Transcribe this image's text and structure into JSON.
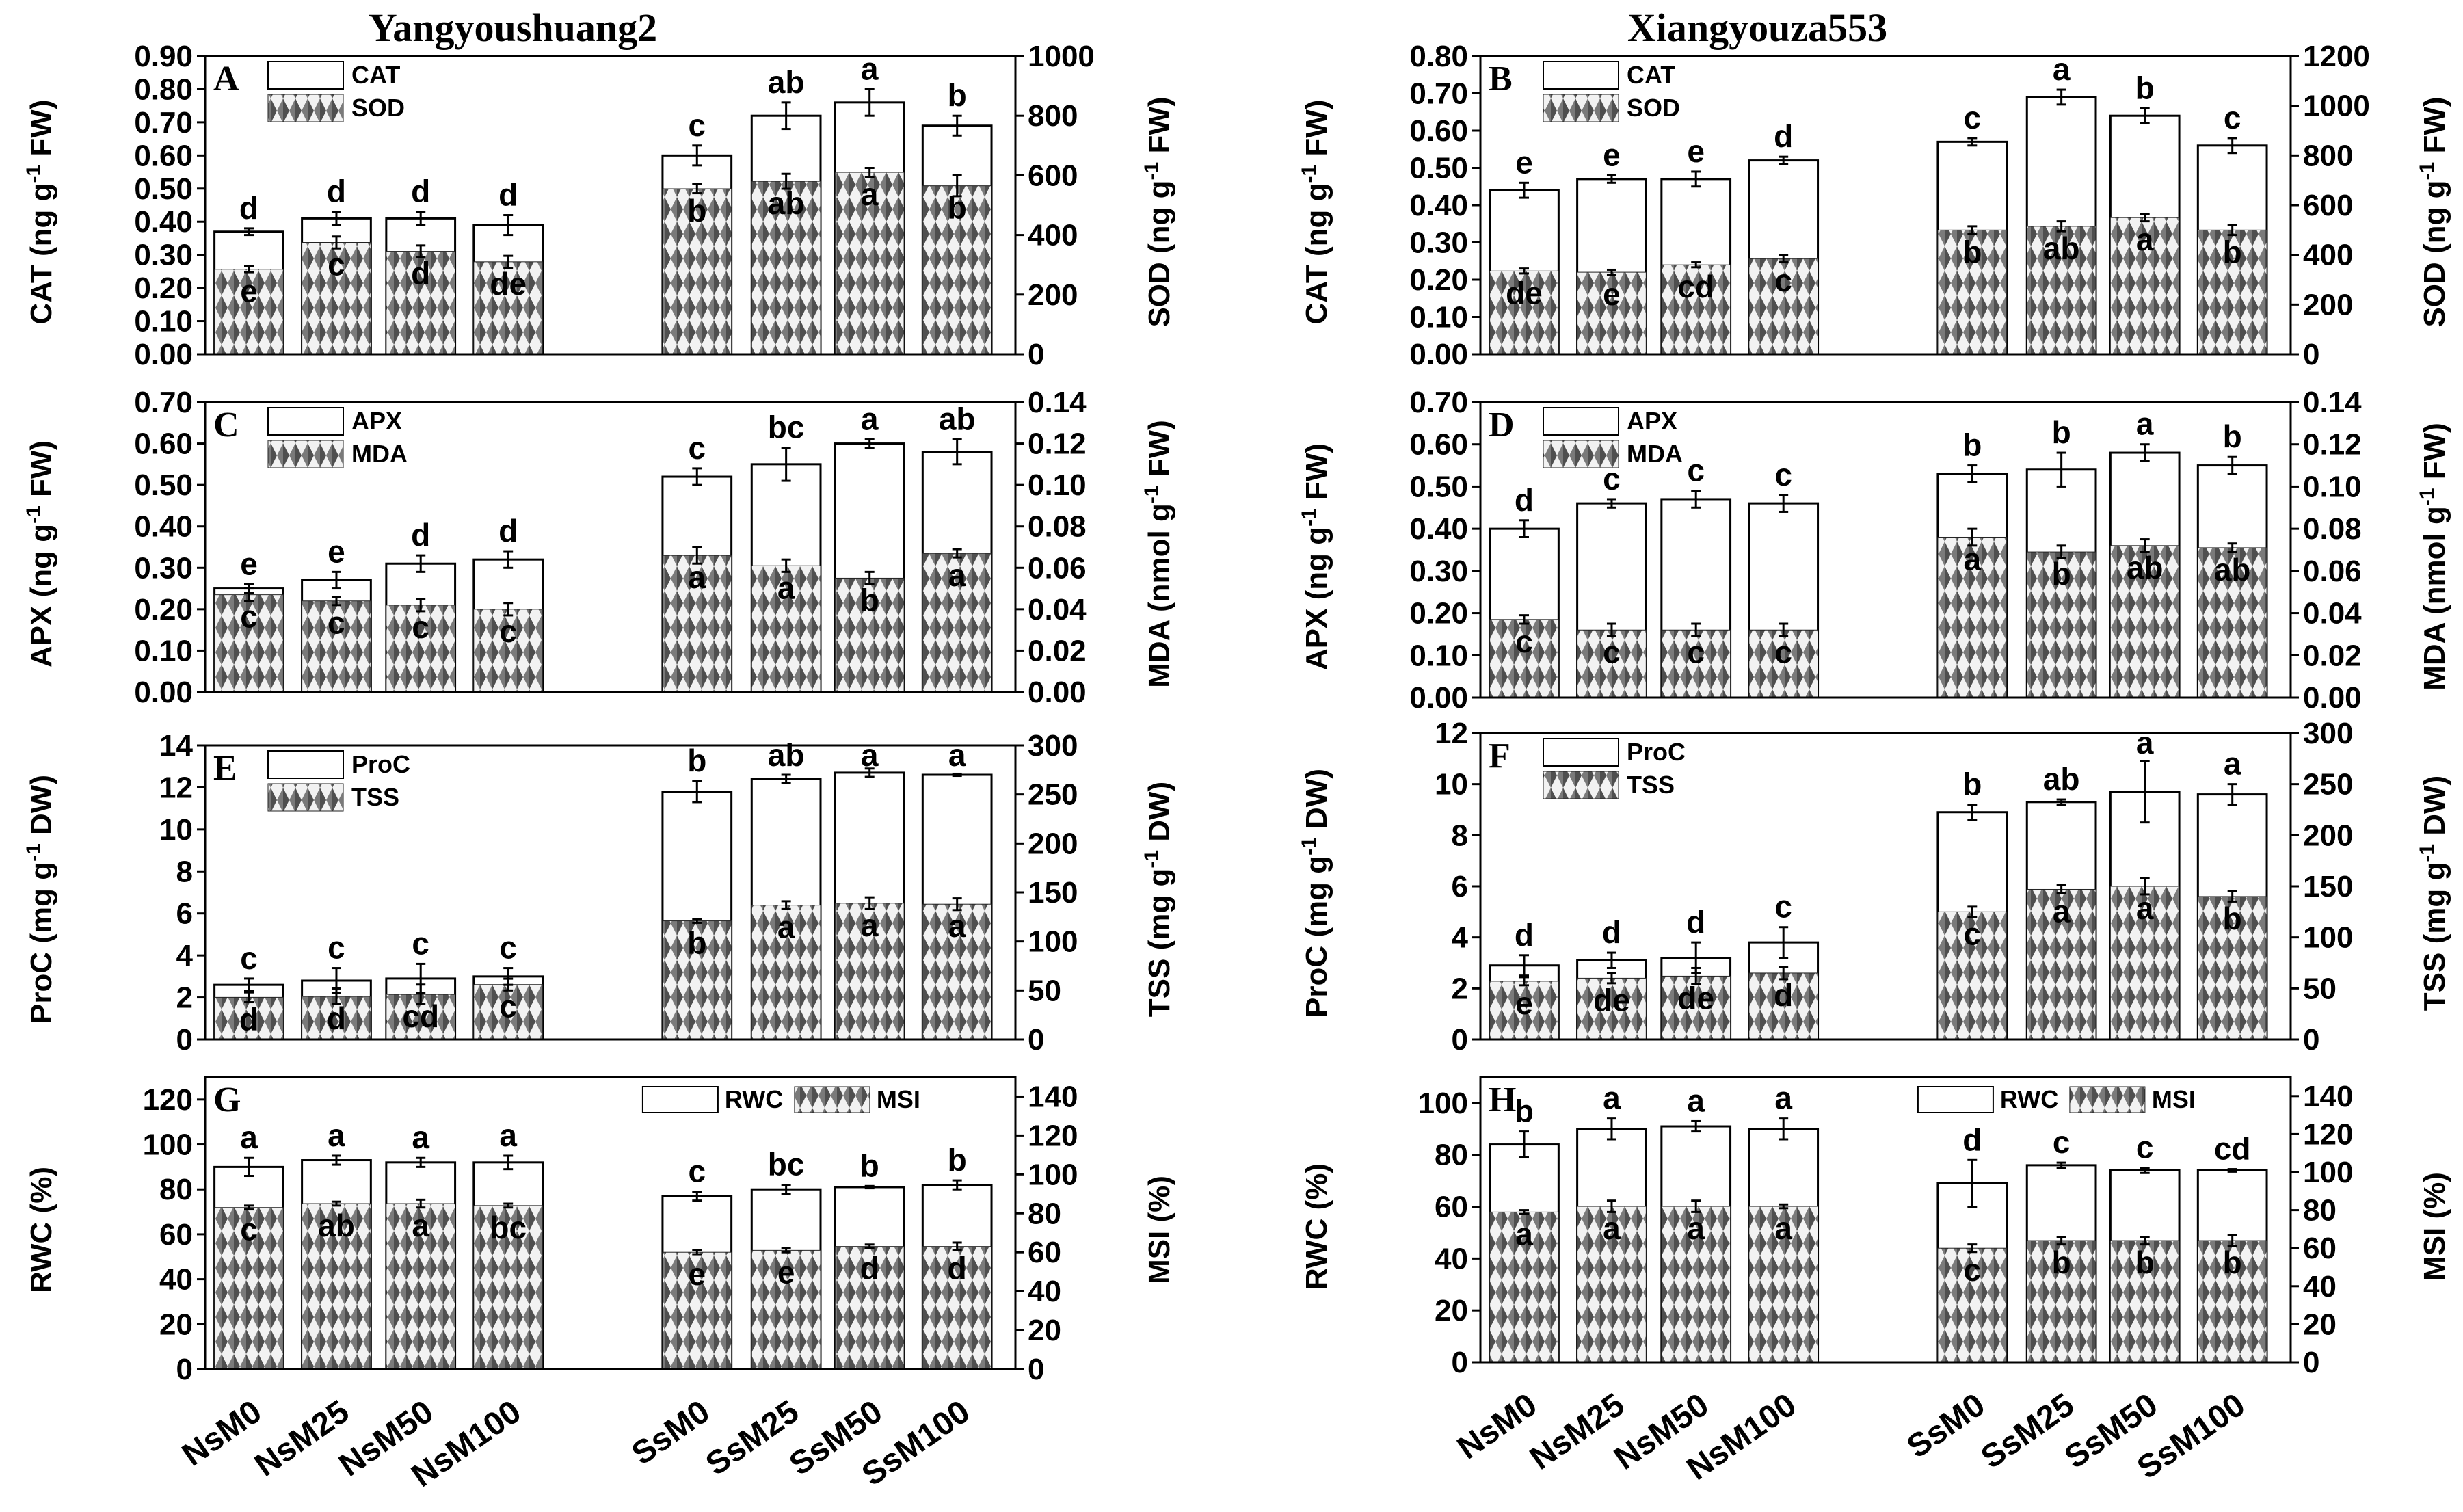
{
  "columns": [
    {
      "title": "Yangyoushuang2"
    },
    {
      "title": "Xiangyouza553"
    }
  ],
  "chart_data": [
    {
      "panel": "A",
      "type": "bar",
      "variety": "Yangyoushuang2",
      "categories": [
        "NsM0",
        "NsM25",
        "NsM50",
        "NsM100",
        "SsM0",
        "SsM25",
        "SsM50",
        "SsM100"
      ],
      "left": {
        "name": "CAT",
        "ylabel": "CAT (ng g-1 FW)",
        "ylim": [
          0,
          0.9
        ],
        "ticks": [
          0,
          0.1,
          0.2,
          0.3,
          0.4,
          0.5,
          0.6,
          0.7,
          0.8,
          0.9
        ],
        "values": [
          0.37,
          0.41,
          0.41,
          0.39,
          0.6,
          0.72,
          0.76,
          0.69
        ],
        "errors": [
          0.01,
          0.02,
          0.02,
          0.03,
          0.03,
          0.04,
          0.04,
          0.03
        ],
        "letters": [
          "d",
          "d",
          "d",
          "d",
          "c",
          "ab",
          "a",
          "b"
        ]
      },
      "right": {
        "name": "SOD",
        "ylabel": "SOD (ng g-1 FW)",
        "ylim": [
          0,
          1000
        ],
        "ticks": [
          0,
          200,
          400,
          600,
          800,
          1000
        ],
        "values": [
          285,
          375,
          345,
          310,
          555,
          580,
          610,
          565
        ],
        "errors": [
          10,
          20,
          20,
          20,
          15,
          25,
          15,
          35
        ],
        "letters": [
          "e",
          "c",
          "d",
          "de",
          "b",
          "ab",
          "a",
          "b"
        ]
      },
      "legend": [
        "CAT",
        "SOD"
      ],
      "legend_pos": "top-left"
    },
    {
      "panel": "B",
      "type": "bar",
      "variety": "Xiangyouza553",
      "categories": [
        "NsM0",
        "NsM25",
        "NsM50",
        "NsM100",
        "SsM0",
        "SsM25",
        "SsM50",
        "SsM100"
      ],
      "left": {
        "name": "CAT",
        "ylabel": "CAT (ng g-1 FW)",
        "ylim": [
          0,
          0.8
        ],
        "ticks": [
          0,
          0.1,
          0.2,
          0.3,
          0.4,
          0.5,
          0.6,
          0.7,
          0.8
        ],
        "values": [
          0.44,
          0.47,
          0.47,
          0.52,
          0.57,
          0.69,
          0.64,
          0.56
        ],
        "errors": [
          0.02,
          0.01,
          0.02,
          0.01,
          0.01,
          0.02,
          0.02,
          0.02
        ],
        "letters": [
          "e",
          "e",
          "e",
          "d",
          "c",
          "a",
          "b",
          "c"
        ]
      },
      "right": {
        "name": "SOD",
        "ylabel": "SOD (ng g-1 FW)",
        "ylim": [
          0,
          1200
        ],
        "ticks": [
          0,
          200,
          400,
          600,
          800,
          1000,
          1200
        ],
        "values": [
          335,
          330,
          360,
          385,
          500,
          515,
          550,
          500
        ],
        "errors": [
          10,
          10,
          10,
          15,
          15,
          20,
          15,
          20
        ],
        "letters": [
          "de",
          "e",
          "cd",
          "c",
          "b",
          "ab",
          "a",
          "b"
        ]
      },
      "legend": [
        "CAT",
        "SOD"
      ],
      "legend_pos": "top-left"
    },
    {
      "panel": "C",
      "type": "bar",
      "variety": "Yangyoushuang2",
      "categories": [
        "NsM0",
        "NsM25",
        "NsM50",
        "NsM100",
        "SsM0",
        "SsM25",
        "SsM50",
        "SsM100"
      ],
      "left": {
        "name": "APX",
        "ylabel": "APX (ng g-1 FW)",
        "ylim": [
          0,
          0.7
        ],
        "ticks": [
          0,
          0.1,
          0.2,
          0.3,
          0.4,
          0.5,
          0.6,
          0.7
        ],
        "values": [
          0.25,
          0.27,
          0.31,
          0.32,
          0.52,
          0.55,
          0.6,
          0.58
        ],
        "errors": [
          0.01,
          0.02,
          0.02,
          0.02,
          0.02,
          0.04,
          0.01,
          0.03
        ],
        "letters": [
          "e",
          "e",
          "d",
          "d",
          "c",
          "bc",
          "a",
          "ab"
        ]
      },
      "right": {
        "name": "MDA",
        "ylabel": "MDA (nmol g-1 FW)",
        "ylim": [
          0,
          0.14
        ],
        "ticks": [
          0,
          0.02,
          0.04,
          0.06,
          0.08,
          0.1,
          0.12,
          0.14
        ],
        "values": [
          0.047,
          0.044,
          0.042,
          0.04,
          0.066,
          0.061,
          0.055,
          0.067
        ],
        "errors": [
          0.003,
          0.002,
          0.003,
          0.003,
          0.004,
          0.003,
          0.003,
          0.002
        ],
        "letters": [
          "c",
          "c",
          "c",
          "c",
          "a",
          "a",
          "b",
          "a"
        ]
      },
      "legend": [
        "APX",
        "MDA"
      ],
      "legend_pos": "top-left"
    },
    {
      "panel": "D",
      "type": "bar",
      "variety": "Xiangyouza553",
      "categories": [
        "NsM0",
        "NsM25",
        "NsM50",
        "NsM100",
        "SsM0",
        "SsM25",
        "SsM50",
        "SsM100"
      ],
      "left": {
        "name": "APX",
        "ylabel": "APX (ng g-1 FW)",
        "ylim": [
          0,
          0.7
        ],
        "ticks": [
          0,
          0.1,
          0.2,
          0.3,
          0.4,
          0.5,
          0.6,
          0.7
        ],
        "values": [
          0.4,
          0.46,
          0.47,
          0.46,
          0.53,
          0.54,
          0.58,
          0.55
        ],
        "errors": [
          0.02,
          0.01,
          0.02,
          0.02,
          0.02,
          0.04,
          0.02,
          0.02
        ],
        "letters": [
          "d",
          "c",
          "c",
          "c",
          "b",
          "b",
          "a",
          "b"
        ]
      },
      "right": {
        "name": "MDA",
        "ylabel": "MDA (nmol g-1 FW)",
        "ylim": [
          0,
          0.14
        ],
        "ticks": [
          0,
          0.02,
          0.04,
          0.06,
          0.08,
          0.1,
          0.12,
          0.14
        ],
        "values": [
          0.037,
          0.032,
          0.032,
          0.032,
          0.076,
          0.069,
          0.072,
          0.071
        ],
        "errors": [
          0.002,
          0.003,
          0.003,
          0.003,
          0.004,
          0.003,
          0.003,
          0.002
        ],
        "letters": [
          "c",
          "c",
          "c",
          "c",
          "a",
          "b",
          "ab",
          "ab"
        ]
      },
      "legend": [
        "APX",
        "MDA"
      ],
      "legend_pos": "top-left"
    },
    {
      "panel": "E",
      "type": "bar",
      "variety": "Yangyoushuang2",
      "categories": [
        "NsM0",
        "NsM25",
        "NsM50",
        "NsM100",
        "SsM0",
        "SsM25",
        "SsM50",
        "SsM100"
      ],
      "left": {
        "name": "ProC",
        "ylabel": "ProC (mg g-1 DW)",
        "ylim": [
          0,
          14
        ],
        "ticks": [
          0,
          2,
          4,
          6,
          8,
          10,
          12,
          14
        ],
        "values": [
          2.6,
          2.8,
          2.9,
          3.0,
          11.8,
          12.4,
          12.7,
          12.6
        ],
        "errors": [
          0.3,
          0.6,
          0.7,
          0.4,
          0.5,
          0.2,
          0.2,
          0.05
        ],
        "letters": [
          "c",
          "c",
          "c",
          "c",
          "b",
          "ab",
          "a",
          "a"
        ]
      },
      "right": {
        "name": "TSS",
        "ylabel": "TSS (mg g-1 DW)",
        "ylim": [
          0,
          300
        ],
        "ticks": [
          0,
          50,
          100,
          150,
          200,
          250,
          300
        ],
        "values": [
          43,
          44,
          46,
          56,
          121,
          137,
          139,
          138
        ],
        "errors": [
          5,
          8,
          10,
          6,
          2,
          4,
          6,
          6
        ],
        "letters": [
          "d",
          "d",
          "cd",
          "c",
          "b",
          "a",
          "a",
          "a"
        ]
      },
      "legend": [
        "ProC",
        "TSS"
      ],
      "legend_pos": "top-left"
    },
    {
      "panel": "F",
      "type": "bar",
      "variety": "Xiangyouza553",
      "categories": [
        "NsM0",
        "NsM25",
        "NsM50",
        "NsM100",
        "SsM0",
        "SsM25",
        "SsM50",
        "SsM100"
      ],
      "left": {
        "name": "ProC",
        "ylabel": "ProC (mg g-1 DW)",
        "ylim": [
          0,
          12
        ],
        "ticks": [
          0,
          2,
          4,
          6,
          8,
          10,
          12
        ],
        "values": [
          2.9,
          3.1,
          3.2,
          3.8,
          8.9,
          9.3,
          9.7,
          9.6
        ],
        "errors": [
          0.4,
          0.3,
          0.6,
          0.6,
          0.3,
          0.1,
          1.2,
          0.4
        ],
        "letters": [
          "d",
          "d",
          "d",
          "c",
          "b",
          "ab",
          "a",
          "a"
        ]
      },
      "right": {
        "name": "TSS",
        "ylabel": "TSS (mg g-1 DW)",
        "ylim": [
          0,
          300
        ],
        "ticks": [
          0,
          50,
          100,
          150,
          200,
          250,
          300
        ],
        "values": [
          57,
          60,
          62,
          65,
          125,
          147,
          150,
          140
        ],
        "errors": [
          4,
          5,
          8,
          6,
          5,
          4,
          8,
          5
        ],
        "letters": [
          "e",
          "de",
          "de",
          "d",
          "c",
          "a",
          "a",
          "b"
        ]
      },
      "legend": [
        "ProC",
        "TSS"
      ],
      "legend_pos": "top-left"
    },
    {
      "panel": "G",
      "type": "bar",
      "variety": "Yangyoushuang2",
      "categories": [
        "NsM0",
        "NsM25",
        "NsM50",
        "NsM100",
        "SsM0",
        "SsM25",
        "SsM50",
        "SsM100"
      ],
      "left": {
        "name": "RWC",
        "ylabel": "RWC (%)",
        "ylim": [
          0,
          130
        ],
        "ticks": [
          0,
          20,
          40,
          60,
          80,
          100,
          120
        ],
        "values": [
          90,
          93,
          92,
          92,
          77,
          80,
          81,
          82
        ],
        "errors": [
          4,
          2,
          2,
          3,
          2,
          2,
          0.5,
          2
        ],
        "letters": [
          "a",
          "a",
          "a",
          "a",
          "c",
          "bc",
          "b",
          "b"
        ]
      },
      "right": {
        "name": "MSI",
        "ylabel": "MSI (%)",
        "ylim": [
          0,
          150
        ],
        "ticks": [
          0,
          20,
          40,
          60,
          80,
          100,
          120,
          140
        ],
        "values": [
          83,
          85,
          85,
          84,
          60,
          61,
          63,
          63
        ],
        "errors": [
          1,
          1,
          2,
          1,
          1,
          1,
          1,
          2
        ],
        "letters": [
          "c",
          "ab",
          "a",
          "bc",
          "e",
          "e",
          "d",
          "d"
        ]
      },
      "legend": [
        "RWC",
        "MSI"
      ],
      "legend_pos": "top-right"
    },
    {
      "panel": "H",
      "type": "bar",
      "variety": "Xiangyouza553",
      "categories": [
        "NsM0",
        "NsM25",
        "NsM50",
        "NsM100",
        "SsM0",
        "SsM25",
        "SsM50",
        "SsM100"
      ],
      "left": {
        "name": "RWC",
        "ylabel": "RWC (%)",
        "ylim": [
          0,
          110
        ],
        "ticks": [
          0,
          20,
          40,
          60,
          80,
          100
        ],
        "values": [
          84,
          90,
          91,
          90,
          69,
          76,
          74,
          74
        ],
        "errors": [
          5,
          4,
          2,
          4,
          9,
          1,
          1,
          0.5
        ],
        "letters": [
          "b",
          "a",
          "a",
          "a",
          "d",
          "c",
          "c",
          "cd"
        ]
      },
      "right": {
        "name": "MSI",
        "ylabel": "MSI (%)",
        "ylim": [
          0,
          150
        ],
        "ticks": [
          0,
          20,
          40,
          60,
          80,
          100,
          120,
          140
        ],
        "values": [
          79,
          82,
          82,
          82,
          60,
          64,
          64,
          64
        ],
        "errors": [
          1,
          3,
          3,
          1,
          2,
          2,
          2,
          3
        ],
        "letters": [
          "a",
          "a",
          "a",
          "a",
          "c",
          "b",
          "b",
          "b"
        ]
      },
      "legend": [
        "RWC",
        "MSI"
      ],
      "legend_pos": "top-right"
    }
  ],
  "colors": {
    "axis": "#000000",
    "bar_fill": "#ffffff",
    "pattern_light": "#f2f2f2",
    "pattern_dark": "#4f4f4f"
  }
}
